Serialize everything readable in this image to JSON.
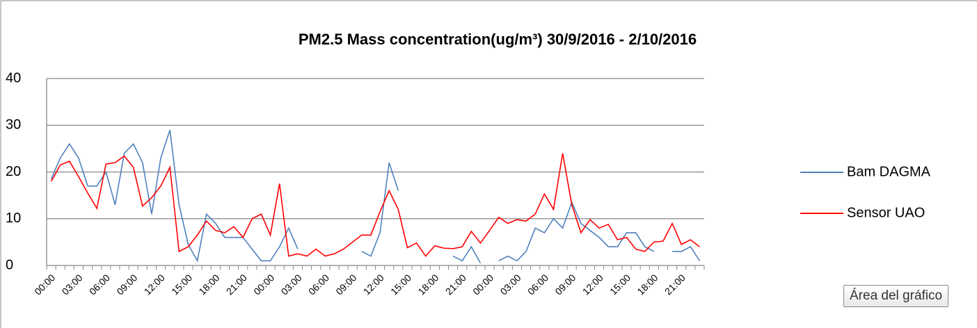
{
  "chart_data": {
    "type": "line",
    "title": "PM2.5 Mass concentration(ug/m³) 30/9/2016 - 2/10/2016",
    "categories": [
      "00:00",
      null,
      null,
      "03:00",
      null,
      null,
      "06:00",
      null,
      null,
      "09:00",
      null,
      null,
      "12:00",
      null,
      null,
      "15:00",
      null,
      null,
      "18:00",
      null,
      null,
      "21:00",
      null,
      null,
      "00:00",
      null,
      null,
      "03:00",
      null,
      null,
      "06:00",
      null,
      null,
      "09:00",
      null,
      null,
      "12:00",
      null,
      null,
      "15:00",
      null,
      null,
      "18:00",
      null,
      null,
      "21:00",
      null,
      null,
      "00:00",
      null,
      null,
      "03:00",
      null,
      null,
      "06:00",
      null,
      null,
      "09:00",
      null,
      null,
      "12:00",
      null,
      null,
      "15:00",
      null,
      null,
      "18:00",
      null,
      null,
      "21:00",
      null,
      null
    ],
    "series": [
      {
        "name": "Bam DAGMA",
        "color": "#4f81bd",
        "values": [
          18.5,
          23,
          26,
          23,
          17,
          17,
          20,
          13,
          24,
          26,
          22,
          11,
          23,
          29,
          13,
          4.5,
          1,
          11,
          9,
          6,
          6,
          6,
          3.5,
          1,
          1,
          4,
          8,
          3.5,
          null,
          null,
          null,
          null,
          null,
          null,
          3,
          2,
          7,
          22,
          16,
          null,
          null,
          null,
          null,
          null,
          2,
          1,
          4,
          0.5,
          null,
          1,
          2,
          1,
          3,
          8,
          7,
          10,
          8,
          13.5,
          9,
          7.5,
          6,
          4,
          4,
          7,
          7,
          4,
          3,
          null,
          3,
          3,
          4,
          1
        ]
      },
      {
        "name": "Sensor UAO",
        "color": "#ff0000",
        "values": [
          18,
          21.5,
          22.3,
          19,
          15.5,
          12.2,
          21.7,
          22,
          23.4,
          21,
          12.7,
          14.5,
          17,
          21,
          3,
          4,
          6.5,
          9.5,
          7.5,
          7,
          8.3,
          6,
          10,
          11,
          6.5,
          17.5,
          2,
          2.5,
          2,
          3.5,
          2,
          2.5,
          3.5,
          5,
          6.5,
          6.5,
          11.5,
          16,
          12,
          3.8,
          4.8,
          2,
          4.2,
          3.7,
          3.6,
          4,
          7.3,
          4.8,
          7.5,
          10.3,
          9,
          9.8,
          9.5,
          11,
          15.3,
          12,
          24,
          13,
          7,
          9.8,
          8,
          8.8,
          5.5,
          6,
          3.5,
          3,
          5,
          5.2,
          9,
          4.5,
          5.5,
          4
        ]
      }
    ],
    "ylim": [
      0,
      40
    ],
    "yticks": [
      0,
      10,
      20,
      30,
      40
    ],
    "grid": true,
    "legend": "right"
  },
  "tooltip": "Área del gráfico"
}
